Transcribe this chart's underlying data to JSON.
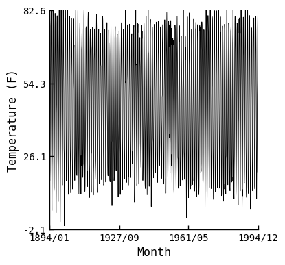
{
  "title": "",
  "xlabel": "Month",
  "ylabel": "Temperature (F)",
  "ylim": [
    -2.1,
    82.6
  ],
  "yticks": [
    -2.1,
    26.1,
    54.3,
    82.6
  ],
  "xtick_labels": [
    "1894/01",
    "1927/09",
    "1961/05",
    "1994/12"
  ],
  "xtick_positions_months": [
    0,
    406,
    806,
    1211
  ],
  "line_color": "#000000",
  "line_width": 0.6,
  "background_color": "#ffffff",
  "mean_temp_F": 46.2,
  "amplitude_F": 35.0,
  "noise_std": 4.0,
  "n_months": 1212,
  "tick_fontsize": 10,
  "label_fontsize": 12
}
